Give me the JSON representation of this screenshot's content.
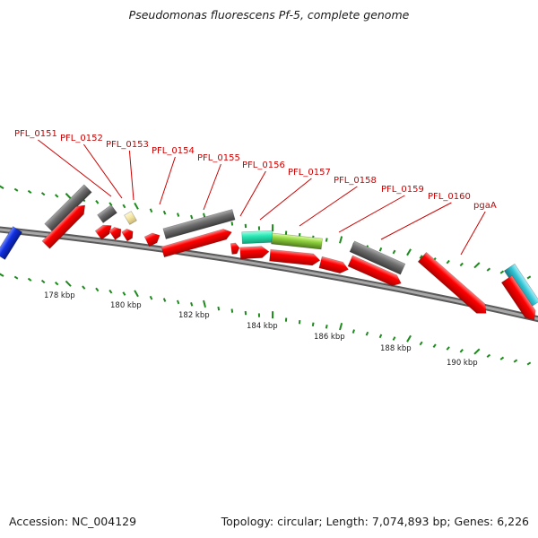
{
  "title": "Pseudomonas fluorescens Pf-5, complete genome",
  "footer": {
    "accession": "Accession: NC_004129",
    "topology": "Topology: circular; Length: 7,074,893 bp; Genes: 6,226"
  },
  "colors": {
    "cds": "#ff0000",
    "dark_feature": "#6e6e6e",
    "pale_feature": "#f3e3a0",
    "teal_feature": "#29e8b4",
    "lime_feature": "#8fd13f",
    "cyan_feature": "#33c4d4",
    "blue_feature": "#1030e0",
    "tick": "#1d8a1d",
    "backbone": "#8a8a8a",
    "label": "#cc0000"
  },
  "scale_labels": [
    "178 kbp",
    "180 kbp",
    "182 kbp",
    "184 kbp",
    "186 kbp",
    "188 kbp",
    "190 kbp"
  ],
  "gene_labels": [
    "PFL_0151",
    "PFL_0152",
    "PFL_0153",
    "PFL_0154",
    "PFL_0155",
    "PFL_0156",
    "PFL_0157",
    "PFL_0158",
    "PFL_0159",
    "PFL_0160",
    "pgaA"
  ]
}
